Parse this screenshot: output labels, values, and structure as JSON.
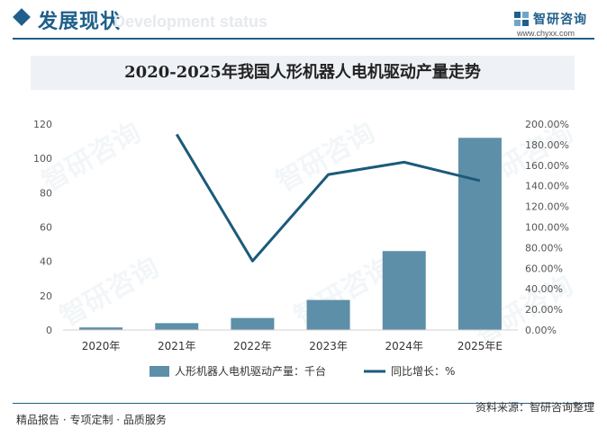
{
  "header": {
    "section_title": "发展现状",
    "section_subtitle": "Development status",
    "brand_name": "智研咨询",
    "brand_url": "www.chyxx.com",
    "brand_logo_icon": "chyxx-logo-icon",
    "accent_color": "#1f5f8b"
  },
  "watermark": "智研咨询",
  "chart_data": {
    "type": "bar",
    "title": "2020-2025年我国人形机器人电机驱动产量走势",
    "categories": [
      "2020年",
      "2021年",
      "2022年",
      "2023年",
      "2024年",
      "2025年E"
    ],
    "series": [
      {
        "name": "人形机器人电机驱动产量：千台",
        "type": "bar",
        "axis": "left",
        "color": "#5e8fa8",
        "values": [
          1.5,
          4,
          7,
          17.5,
          46,
          112
        ]
      },
      {
        "name": "同比增长：%",
        "type": "line",
        "axis": "right",
        "color": "#1b5a7a",
        "values": [
          null,
          190,
          67,
          151,
          163,
          145
        ]
      }
    ],
    "y_left": {
      "min": 0,
      "max": 120,
      "ticks": [
        "0",
        "20",
        "40",
        "60",
        "80",
        "100",
        "120"
      ]
    },
    "y_right": {
      "min": 0,
      "max": 200,
      "ticks": [
        "0.00%",
        "20.00%",
        "40.00%",
        "60.00%",
        "80.00%",
        "100.00%",
        "120.00%",
        "140.00%",
        "160.00%",
        "180.00%",
        "200.00%"
      ]
    },
    "grid": false,
    "legend_position": "bottom"
  },
  "footer": {
    "left": "精品报告 · 专项定制 · 品质服务",
    "right": "资料来源：智研咨询整理"
  }
}
